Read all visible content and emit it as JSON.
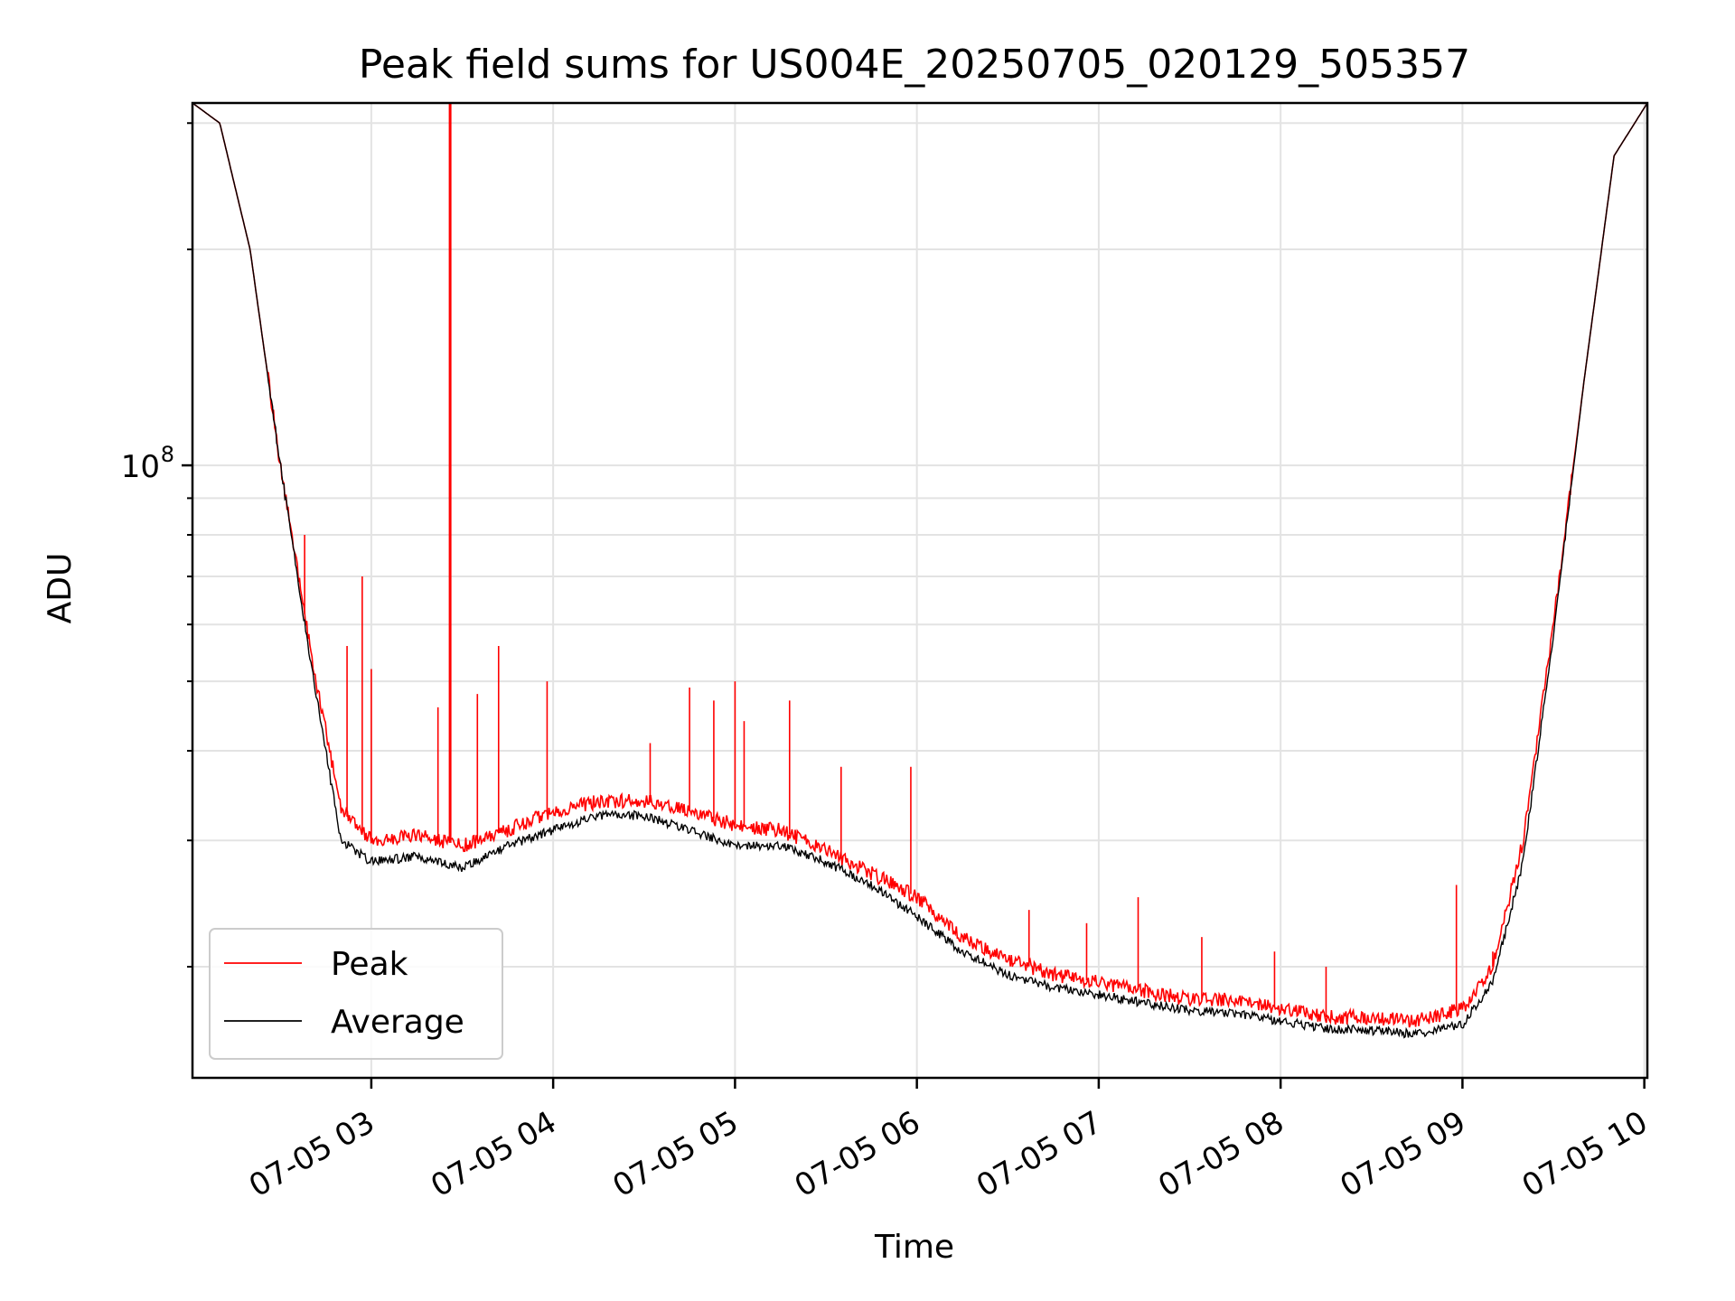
{
  "chart_data": {
    "type": "line",
    "title": "Peak field sums for US004E_20250705_020129_505357",
    "xlabel": "Time",
    "ylabel": "ADU",
    "yscale": "log",
    "grid": true,
    "legend_position": "lower-left",
    "x_range": [
      "07-05 02:01",
      "07-05 10:01"
    ],
    "y_range": [
      14000000,
      320000000
    ],
    "x_ticks": [
      "07-05 03",
      "07-05 04",
      "07-05 05",
      "07-05 06",
      "07-05 07",
      "07-05 08",
      "07-05 09",
      "07-05 10"
    ],
    "y_major_tick": {
      "value": 100000000,
      "base": "10",
      "exponent": "8"
    },
    "y_minor_ticks": [
      20000000,
      30000000,
      40000000,
      50000000,
      60000000,
      70000000,
      80000000,
      90000000,
      200000000,
      300000000
    ],
    "series": [
      {
        "name": "Peak",
        "color": "#ff0000",
        "points": [
          [
            "02:01",
            320000000
          ],
          [
            "02:10",
            300000000
          ],
          [
            "02:20",
            200000000
          ],
          [
            "02:30",
            100000000
          ],
          [
            "02:40",
            55000000
          ],
          [
            "02:50",
            33000000
          ],
          [
            "03:00",
            30000000
          ],
          [
            "03:15",
            30500000
          ],
          [
            "03:30",
            29500000
          ],
          [
            "03:45",
            31000000
          ],
          [
            "04:00",
            33000000
          ],
          [
            "04:15",
            34000000
          ],
          [
            "04:30",
            34000000
          ],
          [
            "04:45",
            33000000
          ],
          [
            "05:00",
            31500000
          ],
          [
            "05:15",
            31000000
          ],
          [
            "05:30",
            29000000
          ],
          [
            "05:45",
            27000000
          ],
          [
            "06:00",
            25000000
          ],
          [
            "06:15",
            22000000
          ],
          [
            "06:30",
            20500000
          ],
          [
            "06:45",
            19500000
          ],
          [
            "07:00",
            19000000
          ],
          [
            "07:15",
            18500000
          ],
          [
            "07:30",
            18000000
          ],
          [
            "07:45",
            18000000
          ],
          [
            "08:00",
            17500000
          ],
          [
            "08:15",
            17000000
          ],
          [
            "08:30",
            17000000
          ],
          [
            "08:45",
            16800000
          ],
          [
            "09:00",
            17500000
          ],
          [
            "09:10",
            20000000
          ],
          [
            "09:20",
            30000000
          ],
          [
            "09:30",
            60000000
          ],
          [
            "09:40",
            130000000
          ],
          [
            "09:50",
            270000000
          ],
          [
            "10:01",
            320000000
          ]
        ],
        "spikes": [
          [
            "02:38",
            80000000
          ],
          [
            "02:52",
            56000000
          ],
          [
            "02:57",
            70000000
          ],
          [
            "03:00",
            52000000
          ],
          [
            "03:22",
            46000000
          ],
          [
            "03:26",
            320000000
          ],
          [
            "03:35",
            48000000
          ],
          [
            "03:42",
            56000000
          ],
          [
            "03:58",
            50000000
          ],
          [
            "04:32",
            41000000
          ],
          [
            "04:45",
            49000000
          ],
          [
            "04:53",
            47000000
          ],
          [
            "05:00",
            50000000
          ],
          [
            "05:03",
            44000000
          ],
          [
            "05:18",
            47000000
          ],
          [
            "05:35",
            38000000
          ],
          [
            "05:58",
            38000000
          ],
          [
            "06:37",
            24000000
          ],
          [
            "06:56",
            23000000
          ],
          [
            "07:13",
            25000000
          ],
          [
            "07:34",
            22000000
          ],
          [
            "07:58",
            21000000
          ],
          [
            "08:15",
            20000000
          ],
          [
            "08:58",
            26000000
          ],
          [
            "09:10",
            21000000
          ]
        ]
      },
      {
        "name": "Average",
        "color": "#000000",
        "points": [
          [
            "02:01",
            320000000
          ],
          [
            "02:10",
            300000000
          ],
          [
            "02:20",
            200000000
          ],
          [
            "02:30",
            100000000
          ],
          [
            "02:40",
            53000000
          ],
          [
            "02:50",
            30000000
          ],
          [
            "03:00",
            28000000
          ],
          [
            "03:15",
            28500000
          ],
          [
            "03:30",
            27500000
          ],
          [
            "03:45",
            29500000
          ],
          [
            "04:00",
            31000000
          ],
          [
            "04:15",
            32500000
          ],
          [
            "04:30",
            32500000
          ],
          [
            "04:45",
            31000000
          ],
          [
            "05:00",
            29500000
          ],
          [
            "05:15",
            29500000
          ],
          [
            "05:30",
            28000000
          ],
          [
            "05:45",
            26000000
          ],
          [
            "06:00",
            23500000
          ],
          [
            "06:15",
            21000000
          ],
          [
            "06:30",
            19500000
          ],
          [
            "06:45",
            18700000
          ],
          [
            "07:00",
            18300000
          ],
          [
            "07:15",
            17800000
          ],
          [
            "07:30",
            17400000
          ],
          [
            "07:45",
            17200000
          ],
          [
            "08:00",
            16800000
          ],
          [
            "08:15",
            16400000
          ],
          [
            "08:30",
            16300000
          ],
          [
            "08:45",
            16100000
          ],
          [
            "09:00",
            16600000
          ],
          [
            "09:10",
            19000000
          ],
          [
            "09:20",
            28000000
          ],
          [
            "09:30",
            58000000
          ],
          [
            "09:40",
            130000000
          ],
          [
            "09:50",
            270000000
          ],
          [
            "10:01",
            320000000
          ]
        ]
      }
    ]
  }
}
